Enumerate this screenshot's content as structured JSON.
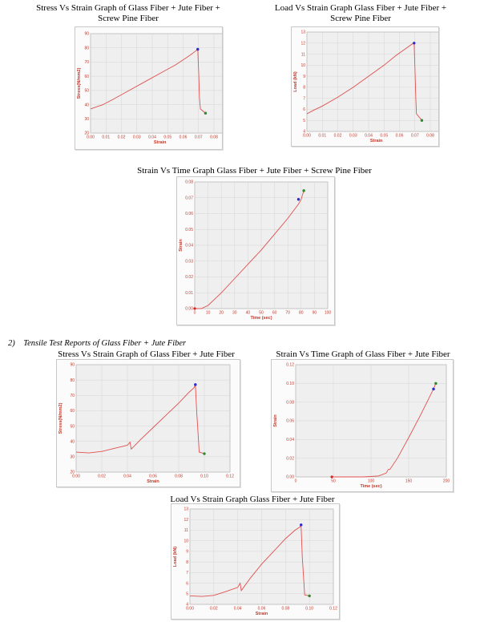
{
  "titles": {
    "c1_line1": "Stress Vs Strain Graph of Glass Fiber + Jute Fiber +",
    "c1_line2": "Screw Pine Fiber",
    "c2_line1": "Load Vs Strain Graph Glass Fiber + Jute Fiber +",
    "c2_line2": "Screw Pine Fiber",
    "c3": "Strain Vs Time Graph Glass Fiber + Jute Fiber + Screw Pine Fiber",
    "c4": "Stress Vs Strain Graph of Glass Fiber + Jute Fiber",
    "c5": "Strain Vs Time Graph of Glass Fiber + Jute Fiber",
    "c6": "Load Vs Strain Graph Glass Fiber + Jute Fiber"
  },
  "section": {
    "number": "2)",
    "heading": "Tensile Test Reports of Glass Fiber + Jute Fiber"
  },
  "colors": {
    "line": "#e05050",
    "peak_marker": "#2a2ad0",
    "end_marker": "#2a8a2a",
    "start_marker": "#d02020",
    "plot_bg": "#efefef",
    "grid": "#cfcfcf",
    "axis_text": "#c0392b"
  },
  "chart_data": [
    {
      "id": "c1",
      "type": "line",
      "xlabel": "Strain",
      "ylabel": "Stress(N/mm2)",
      "xlim": [
        0,
        0.08
      ],
      "ylim": [
        20,
        90
      ],
      "xticks": [
        "0.00",
        "0.01",
        "0.02",
        "0.03",
        "0.04",
        "0.05",
        "0.06",
        "0.07",
        "0.08",
        "0.09"
      ],
      "xtick_vals": [
        0,
        0.01,
        0.02,
        0.03,
        0.04,
        0.05,
        0.06,
        0.07,
        0.08,
        0.09
      ],
      "yticks": [
        "20",
        "30",
        "40",
        "50",
        "60",
        "70",
        "80",
        "90"
      ],
      "ytick_vals": [
        20,
        30,
        40,
        50,
        60,
        70,
        80,
        90
      ],
      "series": [
        {
          "x": [
            0,
            0.004,
            0.008,
            0.015,
            0.025,
            0.035,
            0.045,
            0.055,
            0.062,
            0.066,
            0.0695,
            0.0702,
            0.0706,
            0.0712,
            0.0745
          ],
          "y": [
            37,
            38.5,
            40,
            44,
            50,
            56,
            62,
            68,
            73,
            76,
            79,
            60,
            45,
            37,
            34
          ]
        }
      ],
      "peak": [
        0.0695,
        79
      ],
      "end": [
        0.0745,
        34
      ]
    },
    {
      "id": "c2",
      "type": "line",
      "xlabel": "Strain",
      "ylabel": "Load (kN)",
      "xlim": [
        0,
        0.08
      ],
      "ylim": [
        4,
        13
      ],
      "xticks": [
        "0.00",
        "0.01",
        "0.02",
        "0.03",
        "0.04",
        "0.05",
        "0.06",
        "0.07",
        "0.08",
        "0.09"
      ],
      "xtick_vals": [
        0,
        0.01,
        0.02,
        0.03,
        0.04,
        0.05,
        0.06,
        0.07,
        0.08,
        0.09
      ],
      "yticks": [
        "4",
        "5",
        "6",
        "7",
        "8",
        "9",
        "10",
        "11",
        "12",
        "13"
      ],
      "ytick_vals": [
        4,
        5,
        6,
        7,
        8,
        9,
        10,
        11,
        12,
        13
      ],
      "series": [
        {
          "x": [
            0,
            0.004,
            0.01,
            0.02,
            0.03,
            0.04,
            0.05,
            0.058,
            0.064,
            0.068,
            0.0695,
            0.0701,
            0.0706,
            0.071,
            0.0745
          ],
          "y": [
            5.6,
            5.9,
            6.3,
            7.1,
            8.0,
            9.0,
            10.0,
            10.9,
            11.5,
            11.9,
            12.0,
            9.5,
            7.0,
            5.6,
            5.0
          ]
        }
      ],
      "peak": [
        0.0695,
        12.0
      ],
      "end": [
        0.0745,
        5.0
      ]
    },
    {
      "id": "c3",
      "type": "line",
      "xlabel": "Time (sec)",
      "ylabel": "Strain",
      "xlim": [
        0,
        100
      ],
      "ylim": [
        0,
        0.08
      ],
      "xticks": [
        "0",
        "10",
        "20",
        "30",
        "40",
        "50",
        "60",
        "70",
        "80",
        "90",
        "100"
      ],
      "xtick_vals": [
        0,
        10,
        20,
        30,
        40,
        50,
        60,
        70,
        80,
        90,
        100
      ],
      "yticks": [
        "0.00",
        "0.01",
        "0.02",
        "0.03",
        "0.04",
        "0.05",
        "0.06",
        "0.07",
        "0.08"
      ],
      "ytick_vals": [
        0,
        0.01,
        0.02,
        0.03,
        0.04,
        0.05,
        0.06,
        0.07,
        0.08
      ],
      "series": [
        {
          "x": [
            0,
            5,
            10,
            20,
            30,
            40,
            50,
            60,
            70,
            78,
            80,
            82
          ],
          "y": [
            0,
            0,
            0.002,
            0.01,
            0.019,
            0.028,
            0.037,
            0.047,
            0.057,
            0.066,
            0.069,
            0.0745
          ]
        }
      ],
      "start": [
        0,
        0
      ],
      "peak": [
        78,
        0.069
      ],
      "end": [
        82,
        0.0745
      ]
    },
    {
      "id": "c4",
      "type": "line",
      "xlabel": "Strain",
      "ylabel": "Stress(N/mm2)",
      "xlim": [
        0,
        0.12
      ],
      "ylim": [
        20,
        90
      ],
      "xticks": [
        "0.00",
        "0.02",
        "0.04",
        "0.06",
        "0.08",
        "0.10",
        "0.12"
      ],
      "xtick_vals": [
        0,
        0.02,
        0.04,
        0.06,
        0.08,
        0.1,
        0.12
      ],
      "yticks": [
        "20",
        "30",
        "40",
        "50",
        "60",
        "70",
        "80",
        "90"
      ],
      "ytick_vals": [
        20,
        30,
        40,
        50,
        60,
        70,
        80,
        90
      ],
      "series": [
        {
          "x": [
            0,
            0.01,
            0.02,
            0.03,
            0.04,
            0.042,
            0.043,
            0.05,
            0.06,
            0.07,
            0.08,
            0.088,
            0.092,
            0.093,
            0.094,
            0.096,
            0.1
          ],
          "y": [
            33,
            32.5,
            33.5,
            35.5,
            37.5,
            39.5,
            35,
            41,
            49,
            57,
            65,
            72,
            75,
            77,
            60,
            33,
            32
          ]
        }
      ],
      "peak": [
        0.093,
        77
      ],
      "end": [
        0.1,
        32
      ]
    },
    {
      "id": "c5",
      "type": "line",
      "xlabel": "Time (sec)",
      "ylabel": "Strain",
      "xlim": [
        0,
        200
      ],
      "ylim": [
        0,
        0.12
      ],
      "xticks": [
        "0",
        "50",
        "100",
        "150",
        "200"
      ],
      "xtick_vals": [
        0,
        50,
        100,
        150,
        200
      ],
      "yticks": [
        "0.00",
        "0.02",
        "0.04",
        "0.06",
        "0.08",
        "0.10",
        "0.12"
      ],
      "ytick_vals": [
        0,
        0.02,
        0.04,
        0.06,
        0.08,
        0.1,
        0.12
      ],
      "series": [
        {
          "x": [
            48,
            55,
            90,
            110,
            120,
            123,
            125,
            135,
            150,
            165,
            178,
            183,
            186
          ],
          "y": [
            0,
            0,
            0,
            0.001,
            0.004,
            0.008,
            0.008,
            0.02,
            0.042,
            0.065,
            0.086,
            0.094,
            0.1
          ]
        }
      ],
      "start": [
        48,
        0
      ],
      "peak": [
        183,
        0.094
      ],
      "end": [
        186,
        0.1
      ]
    },
    {
      "id": "c6",
      "type": "line",
      "xlabel": "Strain",
      "ylabel": "Load (kN)",
      "xlim": [
        0,
        0.12
      ],
      "ylim": [
        4,
        13
      ],
      "xticks": [
        "0.00",
        "0.02",
        "0.04",
        "0.06",
        "0.08",
        "0.10",
        "0.12"
      ],
      "xtick_vals": [
        0,
        0.02,
        0.04,
        0.06,
        0.08,
        0.1,
        0.12
      ],
      "yticks": [
        "4",
        "5",
        "6",
        "7",
        "8",
        "9",
        "10",
        "11",
        "12",
        "13"
      ],
      "ytick_vals": [
        4,
        5,
        6,
        7,
        8,
        9,
        10,
        11,
        12,
        13
      ],
      "series": [
        {
          "x": [
            0,
            0.01,
            0.02,
            0.03,
            0.04,
            0.042,
            0.043,
            0.05,
            0.06,
            0.07,
            0.08,
            0.088,
            0.092,
            0.093,
            0.094,
            0.096,
            0.1
          ],
          "y": [
            4.8,
            4.75,
            4.85,
            5.2,
            5.6,
            6.0,
            5.3,
            6.4,
            7.8,
            9.0,
            10.2,
            11.0,
            11.3,
            11.5,
            8.5,
            4.9,
            4.8
          ]
        }
      ],
      "peak": [
        0.093,
        11.5
      ],
      "end": [
        0.1,
        4.8
      ]
    }
  ]
}
